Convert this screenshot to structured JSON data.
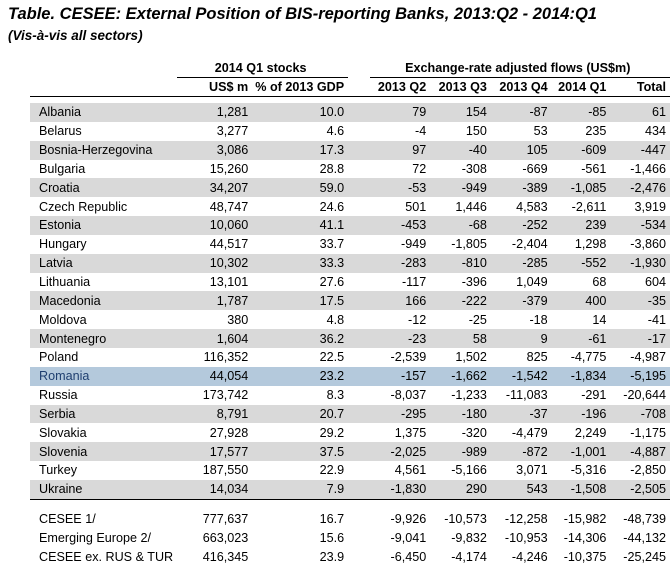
{
  "title": "Table.  CESEE: External Position of BIS-reporting Banks, 2013:Q2 - 2014:Q1",
  "subtitle": "(Vis-à-vis all sectors)",
  "header": {
    "group_stocks": "2014 Q1 stocks",
    "group_flows": "Exchange-rate adjusted flows (US$m)",
    "columns": [
      "US$ m",
      "% of 2013 GDP",
      "2013 Q2",
      "2013 Q3",
      "2013 Q4",
      "2014 Q1",
      "Total"
    ]
  },
  "rows": [
    {
      "country": "Albania",
      "values": [
        "1,281",
        "10.0",
        "79",
        "154",
        "-87",
        "-85",
        "61"
      ]
    },
    {
      "country": "Belarus",
      "values": [
        "3,277",
        "4.6",
        "-4",
        "150",
        "53",
        "235",
        "434"
      ]
    },
    {
      "country": "Bosnia-Herzegovina",
      "values": [
        "3,086",
        "17.3",
        "97",
        "-40",
        "105",
        "-609",
        "-447"
      ]
    },
    {
      "country": "Bulgaria",
      "values": [
        "15,260",
        "28.8",
        "72",
        "-308",
        "-669",
        "-561",
        "-1,466"
      ]
    },
    {
      "country": "Croatia",
      "values": [
        "34,207",
        "59.0",
        "-53",
        "-949",
        "-389",
        "-1,085",
        "-2,476"
      ]
    },
    {
      "country": "Czech Republic",
      "values": [
        "48,747",
        "24.6",
        "501",
        "1,446",
        "4,583",
        "-2,611",
        "3,919"
      ]
    },
    {
      "country": "Estonia",
      "values": [
        "10,060",
        "41.1",
        "-453",
        "-68",
        "-252",
        "239",
        "-534"
      ]
    },
    {
      "country": "Hungary",
      "values": [
        "44,517",
        "33.7",
        "-949",
        "-1,805",
        "-2,404",
        "1,298",
        "-3,860"
      ]
    },
    {
      "country": "Latvia",
      "values": [
        "10,302",
        "33.3",
        "-283",
        "-810",
        "-285",
        "-552",
        "-1,930"
      ]
    },
    {
      "country": "Lithuania",
      "values": [
        "13,101",
        "27.6",
        "-117",
        "-396",
        "1,049",
        "68",
        "604"
      ]
    },
    {
      "country": "Macedonia",
      "values": [
        "1,787",
        "17.5",
        "166",
        "-222",
        "-379",
        "400",
        "-35"
      ]
    },
    {
      "country": "Moldova",
      "values": [
        "380",
        "4.8",
        "-12",
        "-25",
        "-18",
        "14",
        "-41"
      ]
    },
    {
      "country": "Montenegro",
      "values": [
        "1,604",
        "36.2",
        "-23",
        "58",
        "9",
        "-61",
        "-17"
      ]
    },
    {
      "country": "Poland",
      "values": [
        "116,352",
        "22.5",
        "-2,539",
        "1,502",
        "825",
        "-4,775",
        "-4,987"
      ]
    },
    {
      "country": "Romania",
      "values": [
        "44,054",
        "23.2",
        "-157",
        "-1,662",
        "-1,542",
        "-1,834",
        "-5,195"
      ]
    },
    {
      "country": "Russia",
      "values": [
        "173,742",
        "8.3",
        "-8,037",
        "-1,233",
        "-11,083",
        "-291",
        "-20,644"
      ]
    },
    {
      "country": "Serbia",
      "values": [
        "8,791",
        "20.7",
        "-295",
        "-180",
        "-37",
        "-196",
        "-708"
      ]
    },
    {
      "country": "Slovakia",
      "values": [
        "27,928",
        "29.2",
        "1,375",
        "-320",
        "-4,479",
        "2,249",
        "-1,175"
      ]
    },
    {
      "country": "Slovenia",
      "values": [
        "17,577",
        "37.5",
        "-2,025",
        "-989",
        "-872",
        "-1,001",
        "-4,887"
      ]
    },
    {
      "country": "Turkey",
      "values": [
        "187,550",
        "22.9",
        "4,561",
        "-5,166",
        "3,071",
        "-5,316",
        "-2,850"
      ]
    },
    {
      "country": "Ukraine",
      "values": [
        "14,034",
        "7.9",
        "-1,830",
        "290",
        "543",
        "-1,508",
        "-2,505"
      ]
    }
  ],
  "aggregates": [
    {
      "country": "CESEE 1/",
      "values": [
        "777,637",
        "16.7",
        "-9,926",
        "-10,573",
        "-12,258",
        "-15,982",
        "-48,739"
      ]
    },
    {
      "country": "Emerging Europe 2/",
      "values": [
        "663,023",
        "15.6",
        "-9,041",
        "-9,832",
        "-10,953",
        "-14,306",
        "-44,132"
      ]
    },
    {
      "country": "CESEE ex. RUS & TUR",
      "values": [
        "416,345",
        "23.9",
        "-6,450",
        "-4,174",
        "-4,246",
        "-10,375",
        "-25,245"
      ]
    }
  ],
  "colors": {
    "row_shade": "#d9d9d9",
    "row_highlight": "#b4c9dc",
    "highlight_text": "#1f3f70"
  }
}
